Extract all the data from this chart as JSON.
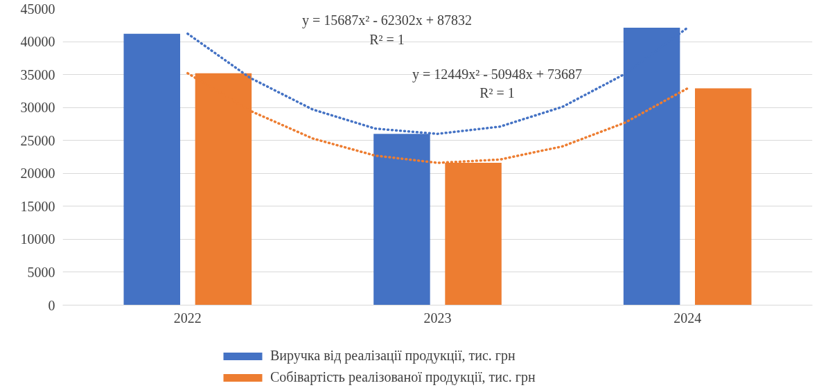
{
  "chart_data": {
    "type": "bar",
    "x": [
      2022,
      2023,
      2024
    ],
    "xlim": [
      2021.5,
      2024.5
    ],
    "xticks": [
      2022,
      2023,
      2024
    ],
    "series": [
      {
        "name": "Виручка від реалізації продукції, тис. грн",
        "color": "#4472c4",
        "values": [
          41200,
          26000,
          42100
        ]
      },
      {
        "name": "Собівартість реалізованої продукції, тис. грн",
        "color": "#ed7d31",
        "values": [
          35200,
          21600,
          32900
        ]
      },
      {
        "type": "line",
        "line_style": "dotted",
        "color": "#4472c4",
        "x": [
          2022,
          2022.25,
          2022.5,
          2022.75,
          2023,
          2023.25,
          2023.5,
          2023.75,
          2024
        ],
        "values": [
          41200,
          34500,
          29700,
          26800,
          26000,
          27100,
          30100,
          35100,
          42100
        ]
      },
      {
        "type": "line",
        "line_style": "dotted",
        "color": "#ed7d31",
        "x": [
          2022,
          2022.25,
          2022.5,
          2022.75,
          2023,
          2023.25,
          2023.5,
          2023.75,
          2024
        ],
        "values": [
          35200,
          29500,
          25300,
          22700,
          21600,
          22100,
          24100,
          27700,
          32900
        ]
      }
    ],
    "ylim": [
      0,
      45000
    ],
    "yticks": [
      0,
      5000,
      10000,
      15000,
      20000,
      25000,
      30000,
      35000,
      40000,
      45000
    ],
    "grid": "y",
    "legend": "bottom",
    "annotations": [
      "y = 15687x² - 62302x + 87832",
      "R² = 1",
      "y = 12449x² - 50948x + 73687",
      "R² = 1"
    ]
  }
}
